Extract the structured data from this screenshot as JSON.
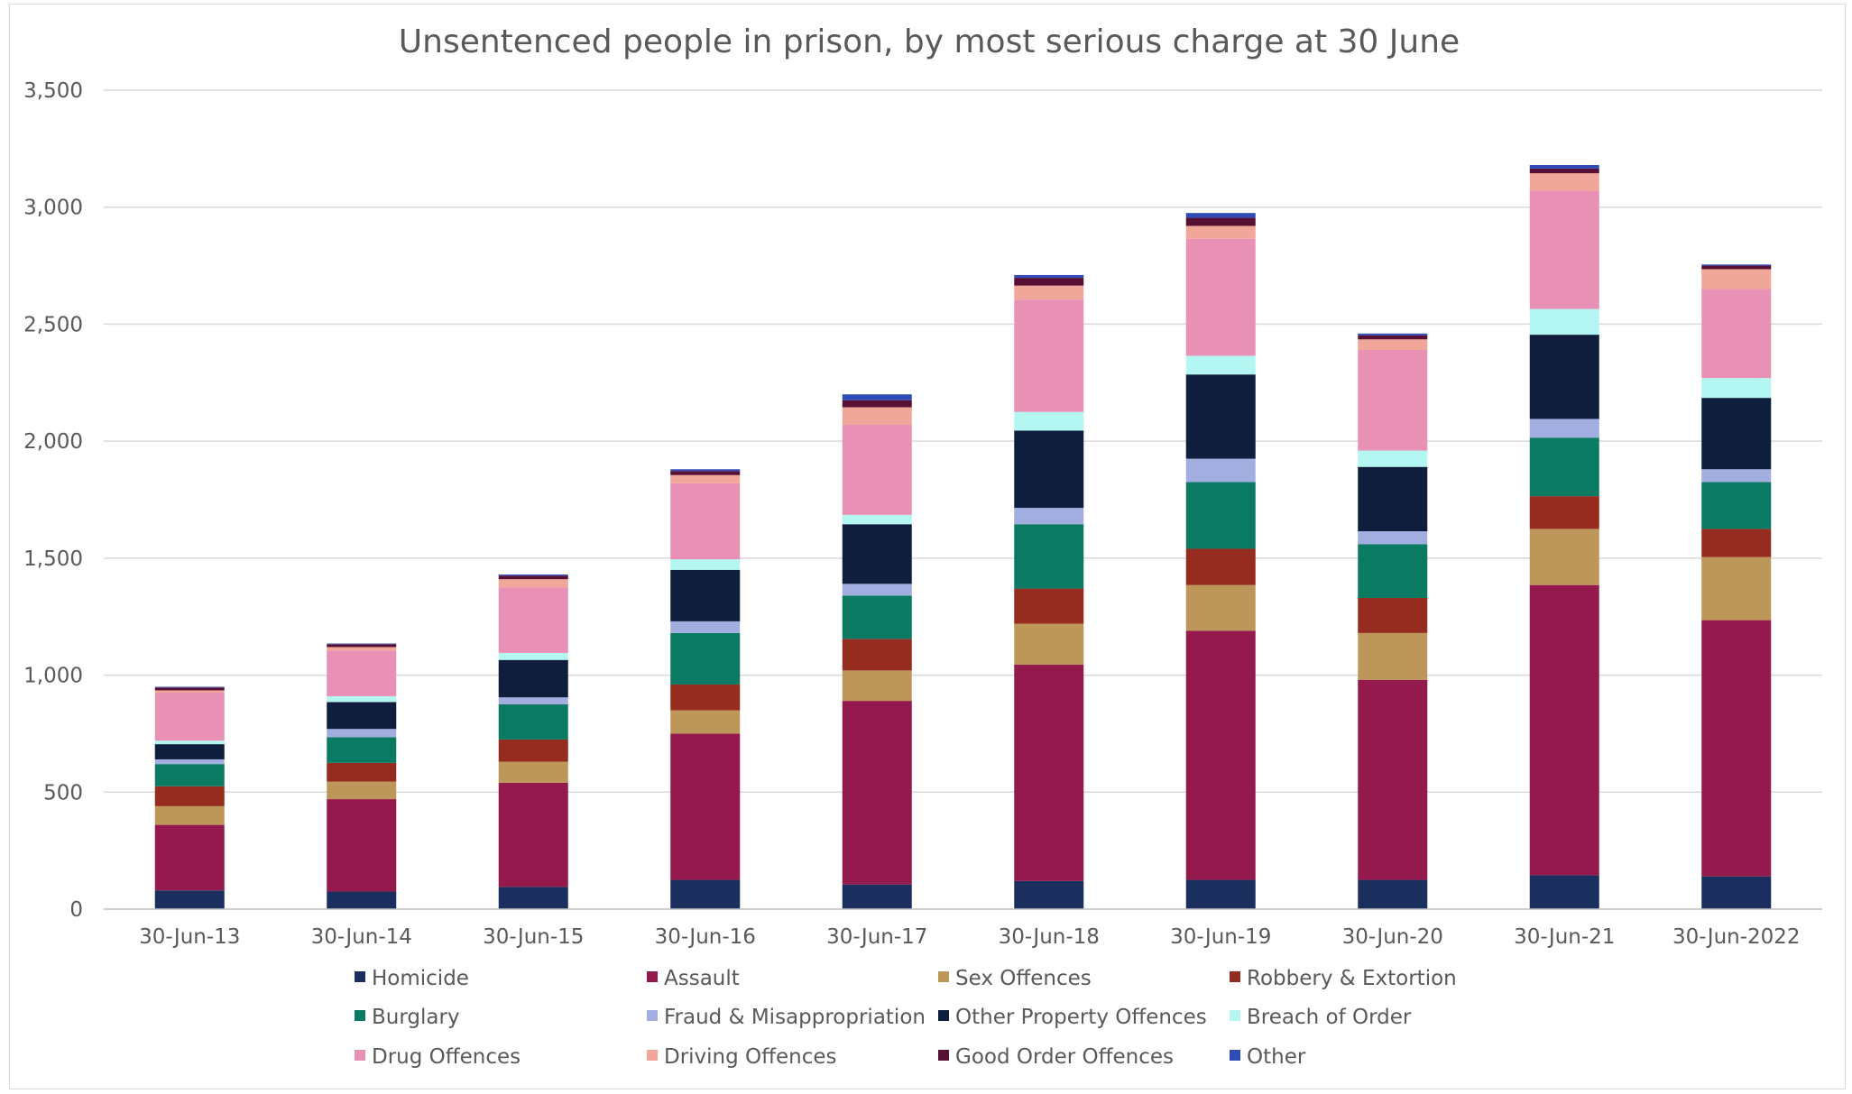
{
  "chart_data": {
    "type": "bar",
    "stacked": true,
    "title": "Unsentenced people in prison, by most serious charge at 30 June",
    "xlabel": "",
    "ylabel": "",
    "ylim": [
      0,
      3500
    ],
    "yticks": [
      0,
      500,
      1000,
      1500,
      2000,
      2500,
      3000,
      3500
    ],
    "ytick_labels": [
      "0",
      "500",
      "1,000",
      "1,500",
      "2,000",
      "2,500",
      "3,000",
      "3,500"
    ],
    "grid": true,
    "legend_position": "bottom",
    "categories": [
      "30-Jun-13",
      "30-Jun-14",
      "30-Jun-15",
      "30-Jun-16",
      "30-Jun-17",
      "30-Jun-18",
      "30-Jun-19",
      "30-Jun-20",
      "30-Jun-21",
      "30-Jun-2022"
    ],
    "series": [
      {
        "name": "Homicide",
        "color": "#1b2f5e",
        "values": [
          80,
          75,
          95,
          125,
          105,
          120,
          125,
          125,
          145,
          140
        ]
      },
      {
        "name": "Assault",
        "color": "#941a4e",
        "values": [
          280,
          395,
          445,
          625,
          785,
          925,
          1065,
          855,
          1240,
          1095
        ]
      },
      {
        "name": "Sex Offences",
        "color": "#bd965a",
        "values": [
          80,
          75,
          90,
          100,
          130,
          175,
          195,
          200,
          240,
          270
        ]
      },
      {
        "name": "Robbery & Extortion",
        "color": "#962c1f",
        "values": [
          85,
          80,
          95,
          110,
          135,
          150,
          155,
          150,
          140,
          120
        ]
      },
      {
        "name": "Burglary",
        "color": "#0a7a63",
        "values": [
          95,
          110,
          150,
          220,
          185,
          275,
          285,
          230,
          250,
          200
        ]
      },
      {
        "name": "Fraud & Misappropriation",
        "color": "#a3aee0",
        "values": [
          20,
          35,
          30,
          50,
          50,
          70,
          100,
          55,
          80,
          55
        ]
      },
      {
        "name": "Other Property Offences",
        "color": "#0f1e3c",
        "values": [
          65,
          115,
          160,
          220,
          255,
          330,
          360,
          275,
          360,
          305
        ]
      },
      {
        "name": "Breach of Order",
        "color": "#b3f6f2",
        "values": [
          15,
          25,
          30,
          45,
          40,
          80,
          80,
          70,
          110,
          85
        ]
      },
      {
        "name": "Drug Offences",
        "color": "#e991b5",
        "values": [
          205,
          195,
          280,
          325,
          385,
          480,
          500,
          430,
          505,
          380
        ]
      },
      {
        "name": "Driving Offences",
        "color": "#f0a79a",
        "values": [
          10,
          15,
          35,
          35,
          75,
          60,
          55,
          45,
          75,
          85
        ]
      },
      {
        "name": "Good Order Offences",
        "color": "#571034",
        "values": [
          12,
          12,
          15,
          17,
          30,
          33,
          35,
          17,
          20,
          15
        ]
      },
      {
        "name": "Other",
        "color": "#2e4bb8",
        "values": [
          3,
          3,
          5,
          8,
          25,
          12,
          20,
          8,
          15,
          5
        ]
      }
    ]
  }
}
